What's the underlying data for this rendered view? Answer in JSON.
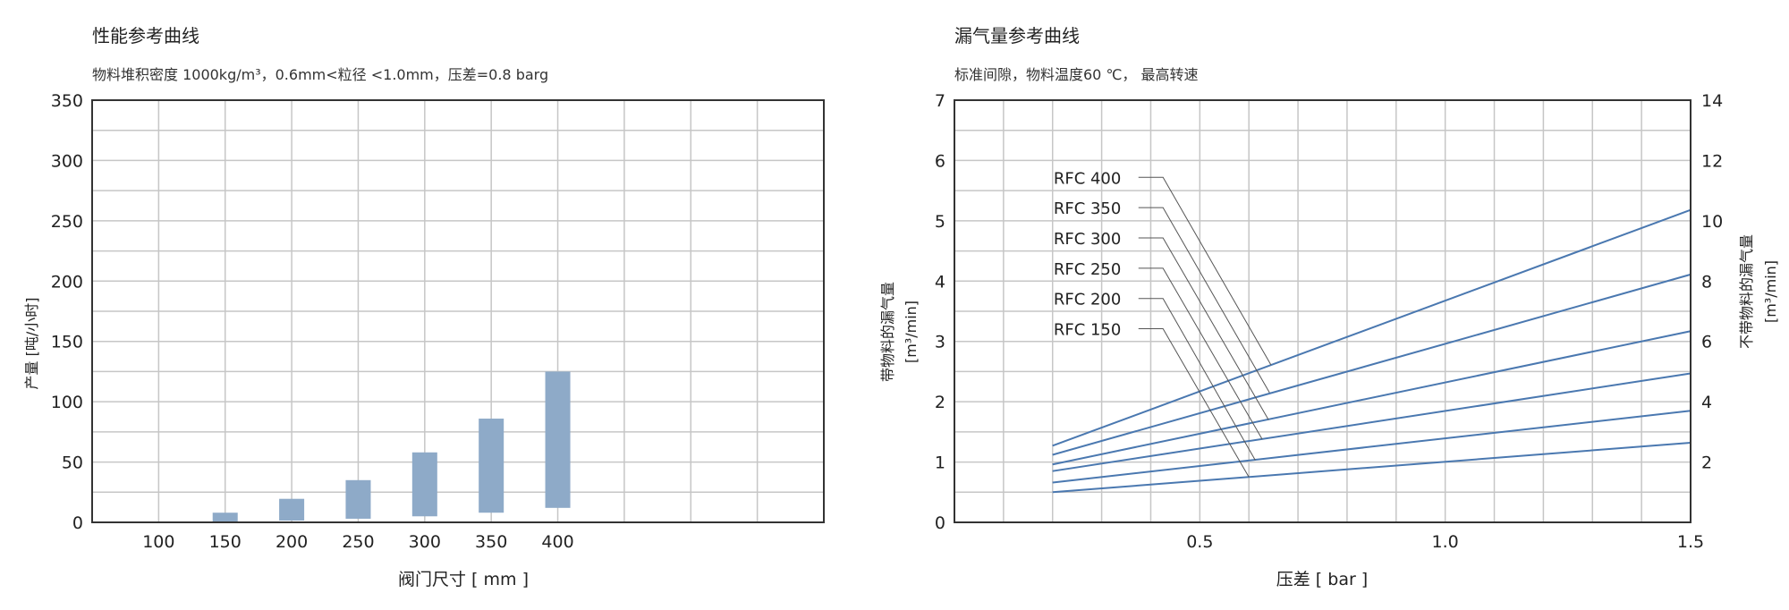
{
  "chart_data": [
    {
      "type": "bar",
      "title": "性能参考曲线",
      "subtitle": "物料堆积密度 1000kg/m³，0.6mm<粒径 <1.0mm，压差=0.8 barg",
      "xlabel": "阀门尺寸 [ mm ]",
      "ylabel": "产量 [吨/小时]",
      "xlim": [
        50,
        600
      ],
      "ylim": [
        0,
        350
      ],
      "grid": true,
      "x_ticks": [
        "100",
        "150",
        "200",
        "250",
        "300",
        "350",
        "400"
      ],
      "y_ticks": [
        "0",
        "50",
        "100",
        "150",
        "200",
        "250",
        "300",
        "350"
      ],
      "categories": [
        150,
        200,
        250,
        300,
        350,
        400
      ],
      "ranges": [
        [
          0,
          8
        ],
        [
          1.5,
          19.5
        ],
        [
          3,
          35
        ],
        [
          5,
          58
        ],
        [
          8,
          86
        ],
        [
          12,
          125
        ]
      ],
      "bar_color": "#8eaac8"
    },
    {
      "type": "line",
      "title": "漏气量参考曲线",
      "subtitle": "标准间隙，物料温度60 ℃， 最高转速",
      "xlabel": "压差 [ bar ]",
      "ylabel": [
        "带物料的漏气量",
        "[m³/min]"
      ],
      "ylabel_right": [
        "不带物料的漏气量",
        "[m³/min]"
      ],
      "xlim": [
        0,
        1.5
      ],
      "ylim": [
        0,
        7
      ],
      "ylim_right": [
        0,
        14
      ],
      "grid": true,
      "x_ticks": [
        "0.5",
        "1.0",
        "1.5"
      ],
      "y_ticks": [
        "0",
        "1",
        "2",
        "3",
        "4",
        "5",
        "6",
        "7"
      ],
      "y_ticks_right": [
        "2",
        "4",
        "6",
        "8",
        "10",
        "12",
        "14"
      ],
      "line_color": "#4a78b0",
      "series": [
        {
          "name": "RFC 400",
          "x": [
            0.2,
            1.5
          ],
          "y": [
            1.27,
            5.18
          ],
          "pointer": [
            0.645,
            2.61
          ]
        },
        {
          "name": "RFC 350",
          "x": [
            0.2,
            1.5
          ],
          "y": [
            1.12,
            4.11
          ],
          "pointer": [
            0.642,
            2.15
          ]
        },
        {
          "name": "RFC 300",
          "x": [
            0.2,
            1.5
          ],
          "y": [
            0.96,
            3.17
          ],
          "pointer": [
            0.64,
            1.7
          ]
        },
        {
          "name": "RFC 250",
          "x": [
            0.2,
            1.5
          ],
          "y": [
            0.85,
            2.47
          ],
          "pointer": [
            0.627,
            1.38
          ]
        },
        {
          "name": "RFC 200",
          "x": [
            0.2,
            1.5
          ],
          "y": [
            0.66,
            1.85
          ],
          "pointer": [
            0.613,
            1.03
          ]
        },
        {
          "name": "RFC 150",
          "x": [
            0.2,
            1.5
          ],
          "y": [
            0.5,
            1.32
          ],
          "pointer": [
            0.6,
            0.75
          ]
        }
      ]
    }
  ]
}
